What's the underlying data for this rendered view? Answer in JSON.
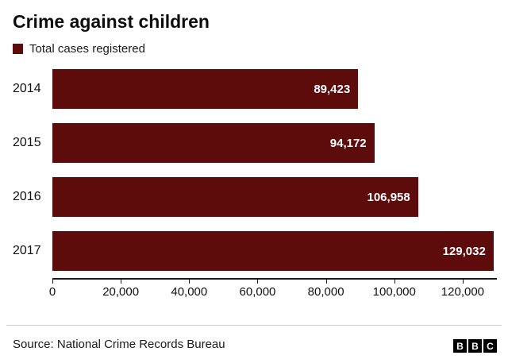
{
  "title": "Crime against children",
  "legend": {
    "label": "Total cases registered",
    "color": "#5e0b0b"
  },
  "chart_data": {
    "type": "bar",
    "orientation": "horizontal",
    "title": "Crime against children",
    "legend_label": "Total cases registered",
    "categories": [
      "2014",
      "2015",
      "2016",
      "2017"
    ],
    "values": [
      89423,
      94172,
      106958,
      129032
    ],
    "value_labels": [
      "89,423",
      "94,172",
      "106,958",
      "129,032"
    ],
    "xlim": [
      0,
      130000
    ],
    "xticks": [
      0,
      20000,
      40000,
      60000,
      80000,
      100000,
      120000
    ],
    "xtick_labels": [
      "0",
      "20,000",
      "40,000",
      "60,000",
      "80,000",
      "100,000",
      "120,000"
    ],
    "bar_color": "#5e0b0b",
    "grid": false,
    "legend_position": "top-left"
  },
  "footer": {
    "source": "Source: National Crime Records Bureau",
    "logo_letters": [
      "B",
      "B",
      "C"
    ]
  }
}
